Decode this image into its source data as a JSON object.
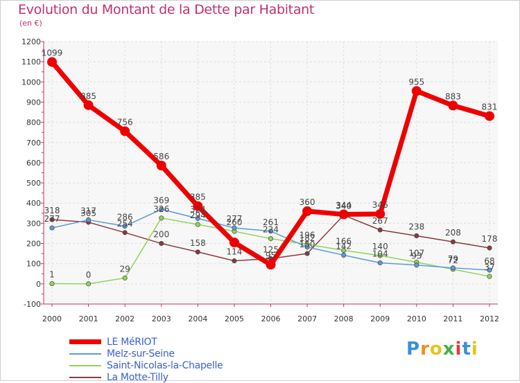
{
  "title": "Evolution du Montant de la Dette par Habitant",
  "subtitle": "(en €)",
  "brand": {
    "text": "Proxiti",
    "colors": [
      "#3a8fd9",
      "#f28c1e",
      "#e8c21f",
      "#46b04a",
      "#e23b3b",
      "#3a8fd9",
      "#e8c21f"
    ]
  },
  "chart_data": {
    "type": "line",
    "title": "Evolution du Montant de la Dette par Habitant",
    "ylabel": "(en €)",
    "xlabel": "",
    "x": [
      "2000",
      "2001",
      "2002",
      "2003",
      "2004",
      "2005",
      "2006",
      "2007",
      "2008",
      "2009",
      "2010",
      "2011",
      "2012"
    ],
    "ylim": [
      -100,
      1200
    ],
    "yticks": [
      "-100",
      "0",
      "100",
      "200",
      "300",
      "400",
      "500",
      "600",
      "700",
      "800",
      "900",
      "1000",
      "1100",
      "1200"
    ],
    "grid": true,
    "legend_position": "bottom-left",
    "series": [
      {
        "name": "LE MéRIOT",
        "color": "#ee0000",
        "width": 7,
        "values": [
          1099,
          885,
          756,
          586,
          385,
          205,
          95,
          360,
          344,
          346,
          955,
          883,
          831
        ],
        "labels": [
          "1099",
          "885",
          "756",
          "586",
          "385",
          "",
          "95",
          "360",
          "344",
          "346",
          "955",
          "883",
          "831"
        ]
      },
      {
        "name": "Melz-sur-Seine",
        "color": "#5b9bd5",
        "width": 1.5,
        "values": [
          277,
          317,
          286,
          369,
          324,
          277,
          261,
          182,
          142,
          104,
          93,
          79,
          68
        ],
        "labels": [
          "277",
          "317",
          "286",
          "369",
          "324",
          "277",
          "261",
          "182",
          "142",
          "104",
          "93",
          "79",
          "68"
        ]
      },
      {
        "name": "Saint-Nicolas-la-Chapelle",
        "color": "#8fd45a",
        "width": 1.5,
        "values": [
          1,
          0,
          29,
          326,
          294,
          260,
          224,
          196,
          166,
          140,
          107,
          72,
          37
        ],
        "labels": [
          "1",
          "0",
          "29",
          "326",
          "294",
          "260",
          "224",
          "196",
          "166",
          "140",
          "107",
          "72",
          "37"
        ]
      },
      {
        "name": "La Motte-Tilly",
        "color": "#8b3a3a",
        "width": 1.5,
        "values": [
          318,
          305,
          254,
          200,
          158,
          114,
          125,
          150,
          340,
          267,
          238,
          208,
          178
        ],
        "labels": [
          "318",
          "305",
          "254",
          "200",
          "158",
          "114",
          "125",
          "150",
          "340",
          "267",
          "238",
          "208",
          "178"
        ]
      }
    ]
  }
}
